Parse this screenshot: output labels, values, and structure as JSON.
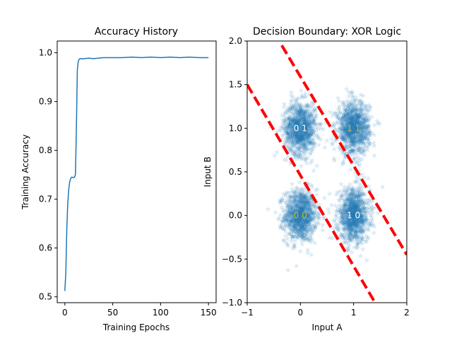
{
  "chart_data": [
    {
      "type": "line",
      "title": "Accuracy History",
      "xlabel": "Training Epochs",
      "ylabel": "Training Accuracy",
      "xlim": [
        -8,
        158
      ],
      "ylim": [
        0.488,
        1.024
      ],
      "xticks": [
        0,
        50,
        100,
        150
      ],
      "yticks": [
        0.5,
        0.6,
        0.7,
        0.8,
        0.9,
        1.0
      ],
      "ytick_labels": [
        "0.5",
        "0.6",
        "0.7",
        "0.8",
        "0.9",
        "1.0"
      ],
      "grid": false,
      "series": [
        {
          "color": "#1f77b4",
          "x": [
            0,
            1,
            2,
            3,
            4,
            5,
            6,
            7,
            8,
            9,
            10,
            11,
            12,
            13,
            14,
            15,
            16,
            17,
            18,
            20,
            25,
            30,
            35,
            40,
            45,
            50,
            60,
            70,
            80,
            90,
            100,
            110,
            120,
            130,
            140,
            150
          ],
          "y": [
            0.512,
            0.55,
            0.64,
            0.69,
            0.72,
            0.735,
            0.742,
            0.745,
            0.745,
            0.744,
            0.745,
            0.75,
            0.84,
            0.965,
            0.982,
            0.987,
            0.988,
            0.988,
            0.987,
            0.988,
            0.989,
            0.988,
            0.989,
            0.99,
            0.99,
            0.99,
            0.99,
            0.991,
            0.99,
            0.991,
            0.99,
            0.991,
            0.99,
            0.991,
            0.99,
            0.99
          ]
        }
      ]
    },
    {
      "type": "scatter",
      "title": "Decision Boundary: XOR Logic",
      "xlabel": "Input A",
      "ylabel": "Input B",
      "xlim": [
        -1,
        2
      ],
      "ylim": [
        -1,
        2
      ],
      "xticks": [
        -1,
        0,
        1,
        2
      ],
      "yticks": [
        -1.0,
        -0.5,
        0.0,
        0.5,
        1.0,
        1.5,
        2.0
      ],
      "ytick_labels": [
        "−1.0",
        "−0.5",
        "0.0",
        "0.5",
        "1.0",
        "1.5",
        "2.0"
      ],
      "xtick_labels": [
        "−1",
        "0",
        "1",
        "2"
      ],
      "grid": false,
      "marker": "star",
      "point_color": "#1f77b4",
      "point_alpha": 0.15,
      "clusters": [
        {
          "center": [
            0,
            0
          ],
          "label": "0 0",
          "label_color": "#bcbd22",
          "points": 1000,
          "spread": 0.15
        },
        {
          "center": [
            0,
            1
          ],
          "label": "0 1",
          "label_color": "#ffffff",
          "points": 1000,
          "spread": 0.15
        },
        {
          "center": [
            1,
            0
          ],
          "label": "1 0",
          "label_color": "#ffffff",
          "points": 1000,
          "spread": 0.15
        },
        {
          "center": [
            1,
            1
          ],
          "label": "1 1",
          "label_color": "#bcbd22",
          "points": 1000,
          "spread": 0.15
        }
      ],
      "boundaries": [
        {
          "color": "#ff0000",
          "style": "dashed",
          "x": [
            -1,
            1.5
          ],
          "y": [
            1.5,
            -1.1
          ]
        },
        {
          "color": "#ff0000",
          "style": "dashed",
          "x": [
            -0.35,
            2
          ],
          "y": [
            1.95,
            -0.45
          ]
        }
      ]
    }
  ]
}
